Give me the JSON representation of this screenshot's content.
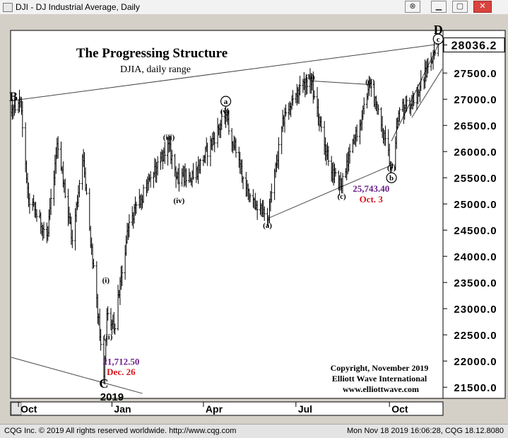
{
  "window": {
    "title": "DJI - DJ Industrial Average, Daily",
    "buttons": [
      "link",
      "minimize",
      "maximize",
      "close"
    ]
  },
  "status": {
    "left": "CQG Inc. © 2019 All rights reserved worldwide. http://www.cqg.com",
    "right": "Mon Nov 18 2019 16:06:28, CQG 18.12.8080"
  },
  "chart_data": {
    "type": "ohlc",
    "title": "The Progressing Structure",
    "subtitle": "DJIA, daily range",
    "ylim": [
      21300,
      28300
    ],
    "y_ticks": [
      21500,
      22000,
      22500,
      23000,
      23500,
      24000,
      24500,
      25000,
      25500,
      26000,
      26500,
      27000,
      27500
    ],
    "y_tick_labels": [
      "21500.0",
      "22000.0",
      "22500.0",
      "23000.0",
      "23500.0",
      "24000.0",
      "24500.0",
      "25000.0",
      "25500.0",
      "26000.0",
      "26500.0",
      "27000.0",
      "27500.0"
    ],
    "last_price_label": "28036.2",
    "last_price": 28036.2,
    "x_range": [
      "2018-09-24",
      "2019-11-22"
    ],
    "x_ticks": [
      {
        "date": "2018-10-01",
        "label": "Oct"
      },
      {
        "date": "2019-01-01",
        "label": "Jan"
      },
      {
        "date": "2019-04-01",
        "label": "Apr"
      },
      {
        "date": "2019-07-01",
        "label": "Jul"
      },
      {
        "date": "2019-10-01",
        "label": "Oct"
      }
    ],
    "year_label": {
      "date": "2019-01-01",
      "label": "2019"
    },
    "grid": false,
    "anchors": [
      [
        "2018-09-24",
        26750
      ],
      [
        "2018-10-03",
        26950
      ],
      [
        "2018-10-11",
        25100
      ],
      [
        "2018-10-29",
        24400
      ],
      [
        "2018-11-08",
        26150
      ],
      [
        "2018-11-23",
        24300
      ],
      [
        "2018-12-03",
        25900
      ],
      [
        "2018-12-24",
        21712.5
      ],
      [
        "2018-12-27",
        22900
      ],
      [
        "2019-01-03",
        22600
      ],
      [
        "2019-01-18",
        24650
      ],
      [
        "2019-02-25",
        26150
      ],
      [
        "2019-03-08",
        25400
      ],
      [
        "2019-03-12",
        25550
      ],
      [
        "2019-03-22",
        25500
      ],
      [
        "2019-04-23",
        26700
      ],
      [
        "2019-05-13",
        25300
      ],
      [
        "2019-06-03",
        24700
      ],
      [
        "2019-06-20",
        26750
      ],
      [
        "2019-07-15",
        27400
      ],
      [
        "2019-08-05",
        25600
      ],
      [
        "2019-08-15",
        25340
      ],
      [
        "2019-09-12",
        27300
      ],
      [
        "2019-10-03",
        25743.4
      ],
      [
        "2019-10-11",
        26800
      ],
      [
        "2019-10-23",
        26900
      ],
      [
        "2019-11-18",
        28036.2
      ]
    ],
    "labels": [
      {
        "text": "B",
        "date": "2018-09-26",
        "price": 27050,
        "style": "big"
      },
      {
        "text": "C",
        "date": "2018-12-24",
        "price": 21570,
        "style": "big"
      },
      {
        "text": "D",
        "date": "2019-11-18",
        "price": 28330,
        "style": "big"
      },
      {
        "text": "(i)",
        "date": "2018-12-26",
        "price": 23550,
        "style": "small"
      },
      {
        "text": "(ii)",
        "date": "2018-12-28",
        "price": 22470,
        "style": "small"
      },
      {
        "text": "(iii)",
        "date": "2019-02-26",
        "price": 26280,
        "style": "small"
      },
      {
        "text": "(iv)",
        "date": "2019-03-08",
        "price": 25070,
        "style": "small"
      },
      {
        "text": "(v)",
        "date": "2019-04-22",
        "price": 26770,
        "style": "small"
      },
      {
        "text": "a",
        "date": "2019-04-23",
        "price": 26960,
        "style": "circle"
      },
      {
        "text": "(a)",
        "date": "2019-06-03",
        "price": 24600,
        "style": "small"
      },
      {
        "text": "(b)",
        "date": "2019-07-15",
        "price": 27430,
        "style": "small"
      },
      {
        "text": "(c)",
        "date": "2019-08-15",
        "price": 25150,
        "style": "small"
      },
      {
        "text": "(d)",
        "date": "2019-09-12",
        "price": 27340,
        "style": "small"
      },
      {
        "text": "(e)",
        "date": "2019-10-03",
        "price": 25700,
        "style": "small"
      },
      {
        "text": "b",
        "date": "2019-10-03",
        "price": 25500,
        "style": "circle"
      },
      {
        "text": "c",
        "date": "2019-11-18",
        "price": 28150,
        "style": "circle"
      }
    ],
    "annotations": [
      {
        "text": "21,712.50",
        "date": "2019-01-10",
        "price": 21930,
        "color": "#6b1f8a"
      },
      {
        "text": "Dec. 26",
        "date": "2019-01-10",
        "price": 21730,
        "color": "#d4131a"
      },
      {
        "text": "25,743.40",
        "date": "2019-09-13",
        "price": 25230,
        "color": "#6b1f8a"
      },
      {
        "text": "Oct. 3",
        "date": "2019-09-13",
        "price": 25030,
        "color": "#d4131a"
      }
    ],
    "copyright": [
      "Copyright, November 2019",
      "Elliott Wave International",
      "www.elliottwave.com"
    ],
    "trendlines": [
      {
        "from": [
          "2018-09-24",
          26970
        ],
        "to": [
          "2019-11-18",
          28050
        ]
      },
      {
        "from": [
          "2018-09-24",
          22070
        ],
        "to": [
          "2019-01-31",
          21380
        ]
      },
      {
        "from": [
          "2019-06-03",
          24720
        ],
        "to": [
          "2019-10-03",
          25740
        ]
      },
      {
        "from": [
          "2019-07-15",
          27350
        ],
        "to": [
          "2019-09-12",
          27280
        ]
      },
      {
        "from": [
          "2019-10-03",
          26200
        ],
        "to": [
          "2019-11-18",
          28040
        ]
      },
      {
        "from": [
          "2019-10-23",
          26650
        ],
        "to": [
          "2019-11-22",
          27580
        ]
      }
    ]
  }
}
